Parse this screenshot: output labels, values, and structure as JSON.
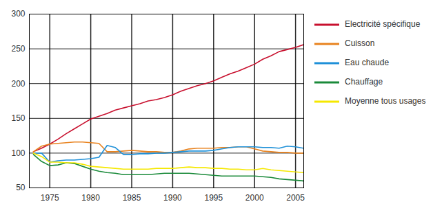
{
  "chart_data": {
    "type": "line",
    "x": [
      1973,
      1974,
      1975,
      1976,
      1977,
      1978,
      1979,
      1980,
      1981,
      1982,
      1983,
      1984,
      1985,
      1986,
      1987,
      1988,
      1989,
      1990,
      1991,
      1992,
      1993,
      1994,
      1995,
      1996,
      1997,
      1998,
      1999,
      2000,
      2001,
      2002,
      2003,
      2004,
      2005,
      2006
    ],
    "series": [
      {
        "name": "Electricité spécifique",
        "color": "#c8102e",
        "values": [
          102,
          107,
          113,
          120,
          128,
          135,
          142,
          149,
          153,
          157,
          162,
          165,
          168,
          171,
          175,
          177,
          180,
          184,
          189,
          193,
          197,
          200,
          204,
          209,
          214,
          218,
          223,
          228,
          235,
          240,
          246,
          249,
          252,
          256
        ]
      },
      {
        "name": "Cuisson",
        "color": "#e8821e",
        "values": [
          102,
          110,
          113,
          114,
          115,
          116,
          116,
          115,
          114,
          102,
          102,
          103,
          104,
          103,
          102,
          102,
          101,
          101,
          103,
          106,
          107,
          107,
          107,
          108,
          108,
          109,
          109,
          106,
          103,
          102,
          101,
          101,
          100,
          100
        ]
      },
      {
        "name": "Eau chaude",
        "color": "#1e90d8",
        "values": [
          100,
          100,
          87,
          89,
          90,
          90,
          91,
          92,
          94,
          111,
          108,
          98,
          98,
          99,
          99,
          100,
          100,
          101,
          102,
          103,
          103,
          103,
          104,
          106,
          108,
          109,
          109,
          109,
          108,
          108,
          107,
          110,
          109,
          107
        ]
      },
      {
        "name": "Chauffage",
        "color": "#1a8a3a",
        "values": [
          98,
          88,
          82,
          83,
          86,
          85,
          81,
          77,
          74,
          72,
          71,
          69,
          69,
          69,
          69,
          70,
          71,
          71,
          71,
          71,
          70,
          69,
          68,
          67,
          67,
          67,
          67,
          67,
          66,
          65,
          63,
          62,
          61,
          60
        ]
      },
      {
        "name": "Moyenne tous usages",
        "color": "#f5e800",
        "values": [
          100,
          95,
          87,
          87,
          86,
          86,
          84,
          81,
          80,
          79,
          78,
          77,
          77,
          77,
          77,
          78,
          78,
          78,
          79,
          80,
          79,
          79,
          78,
          78,
          77,
          77,
          76,
          76,
          78,
          76,
          75,
          74,
          73,
          72
        ]
      }
    ],
    "xlim": [
      1972.5,
      2006
    ],
    "xticks": [
      1975,
      1980,
      1985,
      1990,
      1995,
      2000,
      2005
    ],
    "ylim": [
      50,
      300
    ],
    "yticks": [
      50,
      100,
      150,
      200,
      250,
      300
    ],
    "grid": true,
    "legend": "right"
  }
}
